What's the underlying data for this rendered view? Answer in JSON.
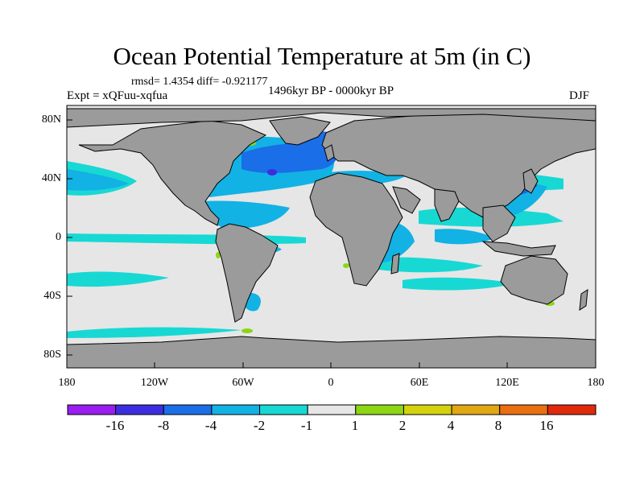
{
  "header": {
    "title": "Ocean Potential Temperature at 5m (in C)",
    "stats": "rmsd= 1.4354 diff= -0.921177",
    "experiment": "Expt = xQFuu-xqfua",
    "period": "1496kyr BP - 0000kyr BP",
    "season": "DJF"
  },
  "axes": {
    "lat_labels": [
      "80N",
      "40N",
      "0",
      "40S",
      "80S"
    ],
    "lon_labels": [
      "180",
      "120W",
      "60W",
      "0",
      "60E",
      "120E",
      "180"
    ]
  },
  "colorbar": {
    "labels": [
      "-16",
      "-8",
      "-4",
      "-2",
      "-1",
      "1",
      "2",
      "4",
      "8",
      "16"
    ],
    "colors": [
      "#9a1ef0",
      "#3c2ee0",
      "#1a6ee8",
      "#12b2e4",
      "#18d8d4",
      "#e6e6e6",
      "#8cd614",
      "#d4d20c",
      "#e0a812",
      "#ea6e12",
      "#e02a0c"
    ]
  },
  "map_colors": {
    "land": "#9b9b9b",
    "neutral": "#e6e6e6",
    "cool1": "#18d8d4",
    "cool2": "#12b2e4",
    "cool3": "#1a6ee8",
    "cool4": "#3c2ee0",
    "warm1": "#8cd614"
  }
}
